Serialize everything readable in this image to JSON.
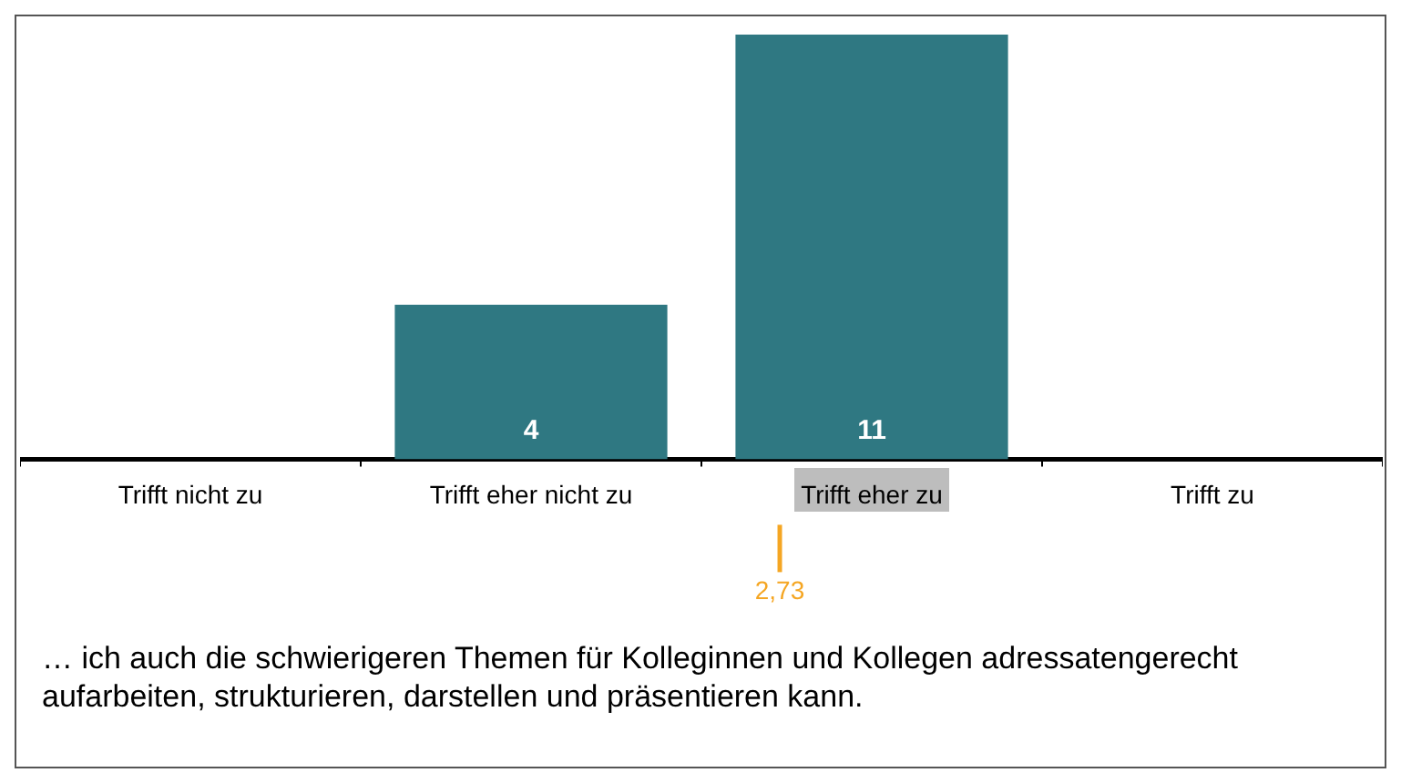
{
  "chart_data": {
    "type": "bar",
    "categories": [
      "Trifft nicht zu",
      "Trifft eher nicht zu",
      "Trifft eher zu",
      "Trifft zu"
    ],
    "values": [
      0,
      4,
      11,
      0
    ],
    "color": "#2f7882",
    "value_labels": [
      null,
      "4",
      "11",
      null
    ],
    "annotations": [
      "2,73",
      "… ich auch die schwierigeren Themen für Kolleginnen und Kollegen adressatengerecht aufarbeiten, strukturieren, darstellen und präsentieren kann."
    ],
    "grid": false,
    "legend": false
  }
}
